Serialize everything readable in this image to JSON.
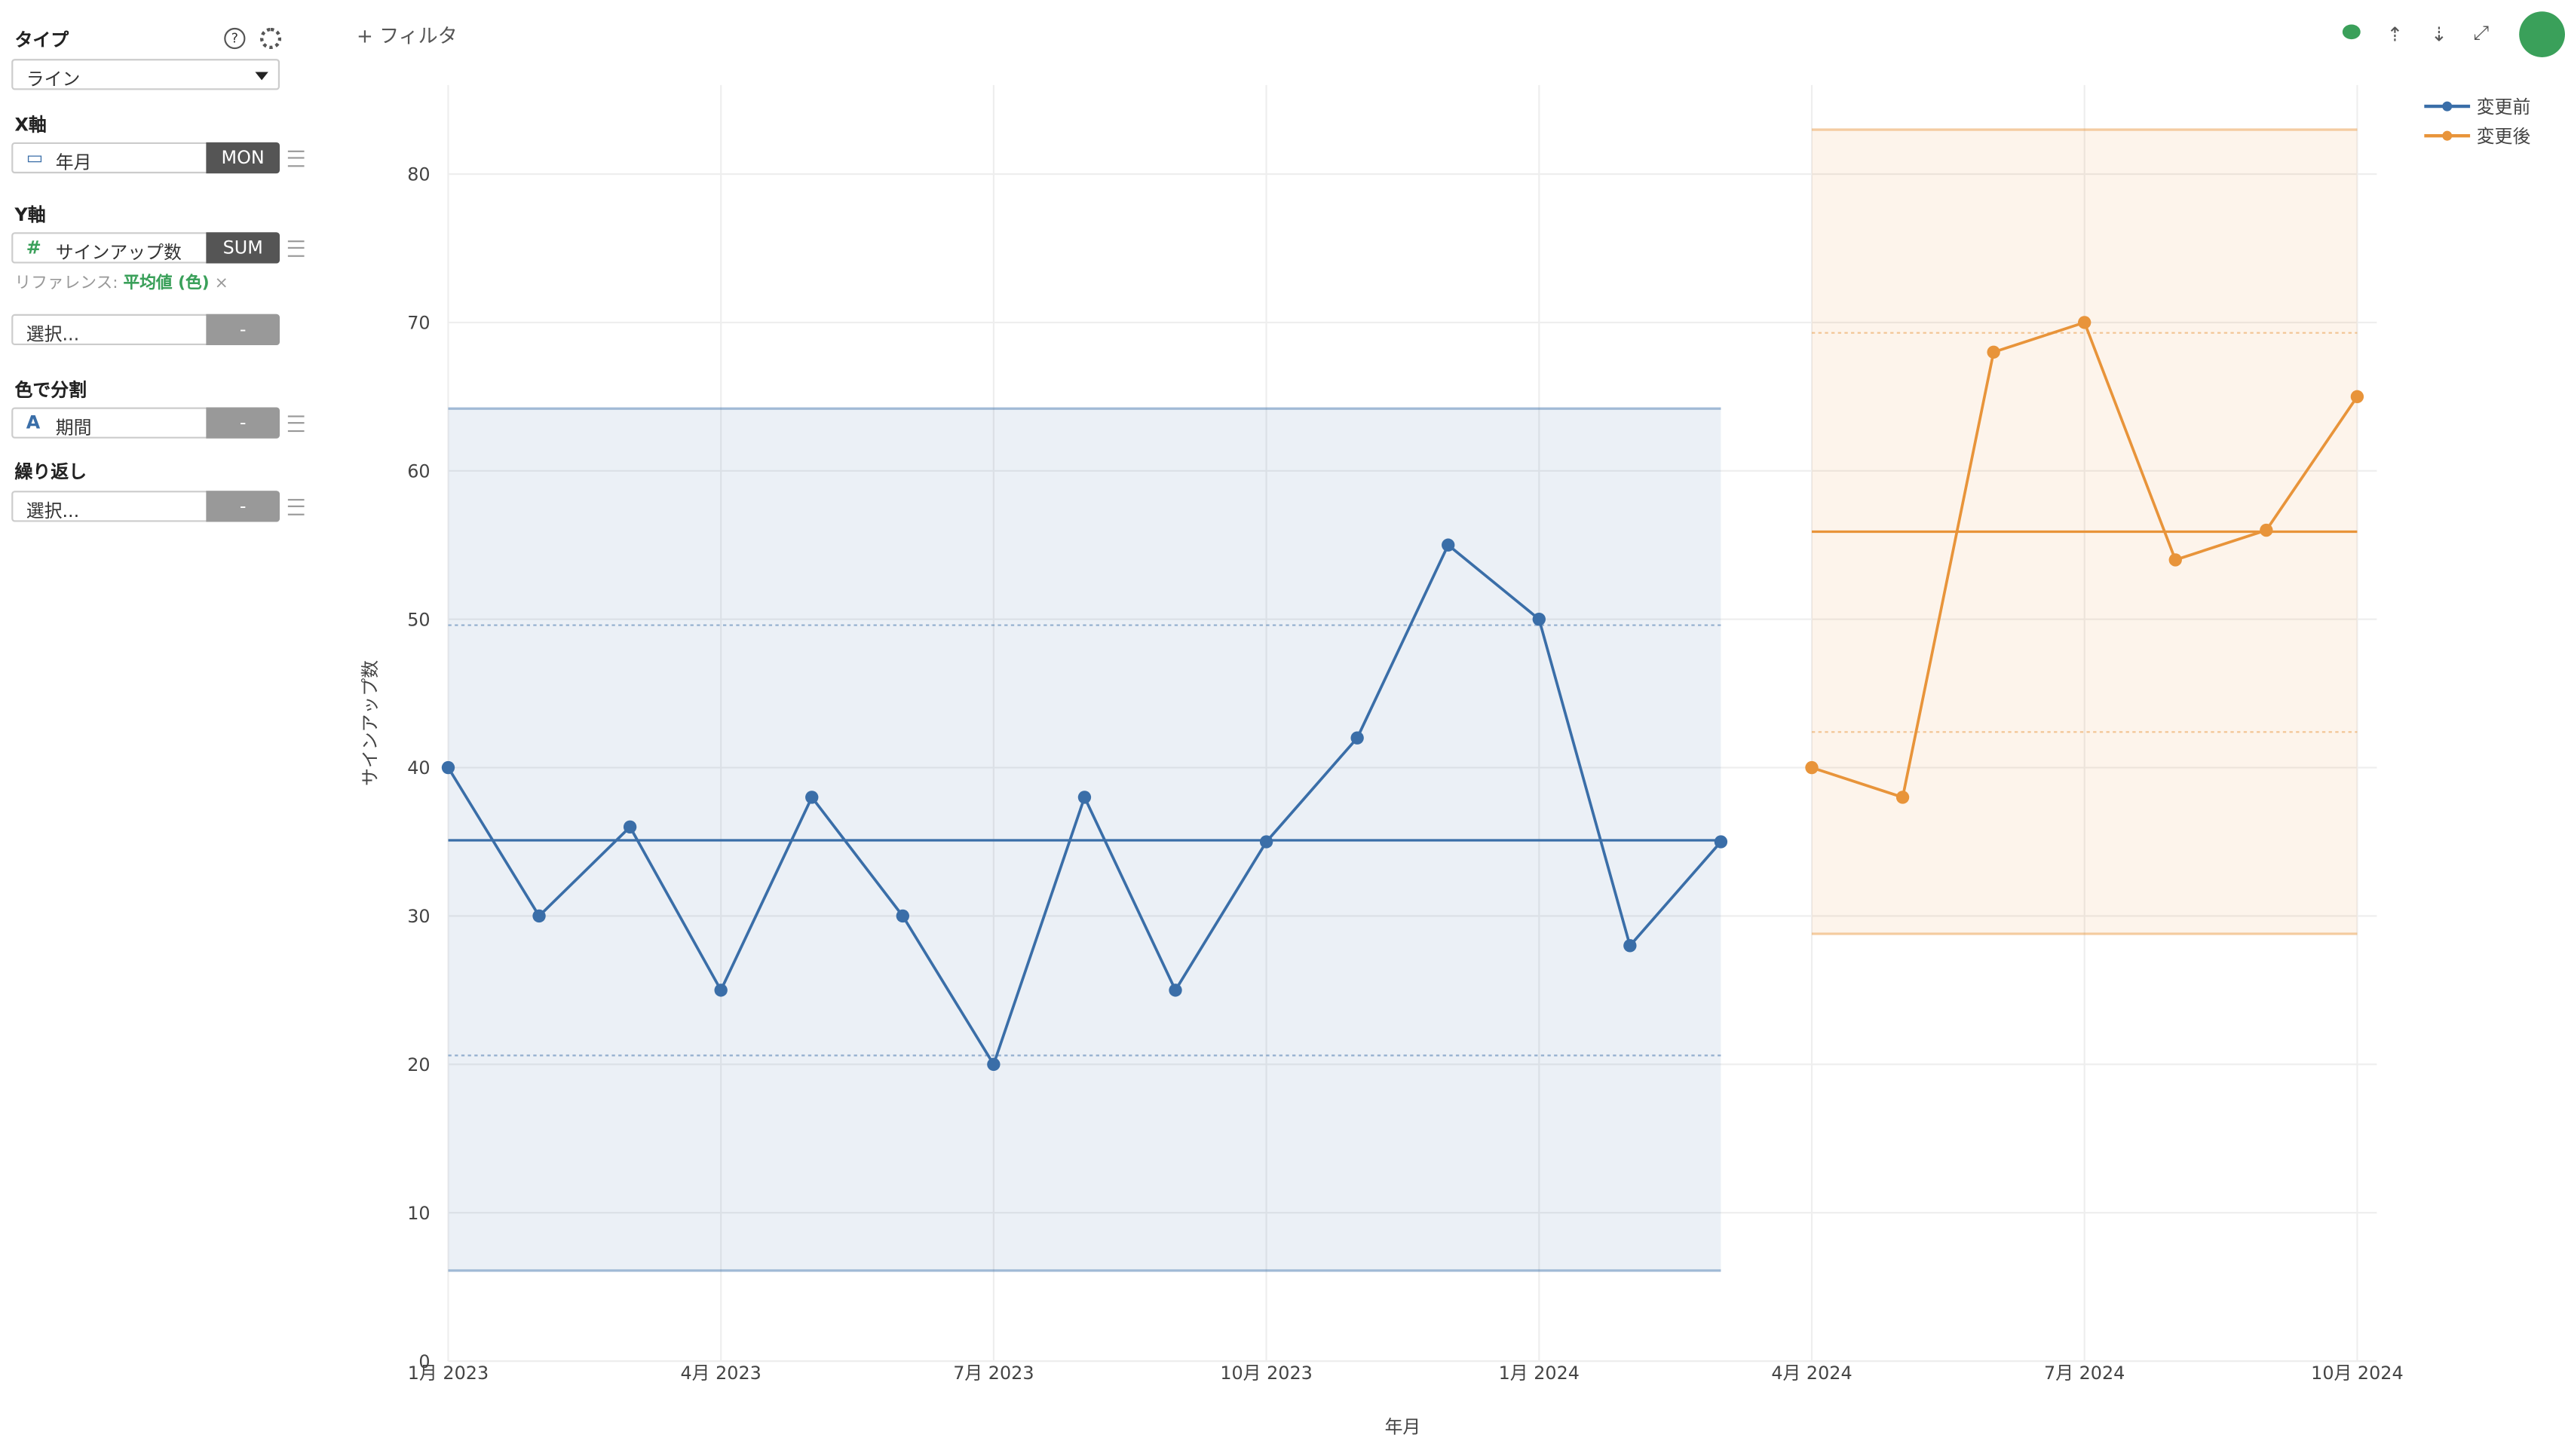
{
  "sidebar": {
    "type_label": "タイプ",
    "type_value": "ライン",
    "x_label": "X軸",
    "x_field": "年月",
    "x_agg": "MON",
    "y_label": "Y軸",
    "y_icon": "#",
    "y_field": "サインアップ数",
    "y_agg": "SUM",
    "ref_label": "リファレンス:",
    "ref_value": "平均値 (色)",
    "extra_select": "選択...",
    "extra_agg": "-",
    "color_label": "色で分割",
    "color_icon": "A",
    "color_field": "期間",
    "color_agg": "-",
    "repeat_label": "繰り返し",
    "repeat_select": "選択...",
    "repeat_agg": "-"
  },
  "toolbar": {
    "filter": "フィルタ"
  },
  "chart_data": {
    "type": "line",
    "x_label": "年月",
    "y_label": "サインアップ数",
    "x": [
      "2023-01",
      "2023-02",
      "2023-03",
      "2023-04",
      "2023-05",
      "2023-06",
      "2023-07",
      "2023-08",
      "2023-09",
      "2023-10",
      "2023-11",
      "2023-12",
      "2024-01",
      "2024-02",
      "2024-03",
      "2024-04",
      "2024-05",
      "2024-06",
      "2024-07",
      "2024-08",
      "2024-09",
      "2024-10"
    ],
    "xlim": [
      "2023-01",
      "2024-10"
    ],
    "xticks": [
      {
        "value": "2023-01",
        "label": "1月 2023"
      },
      {
        "value": "2023-04",
        "label": "4月 2023"
      },
      {
        "value": "2023-07",
        "label": "7月 2023"
      },
      {
        "value": "2023-10",
        "label": "10月 2023"
      },
      {
        "value": "2024-01",
        "label": "1月 2024"
      },
      {
        "value": "2024-04",
        "label": "4月 2024"
      },
      {
        "value": "2024-07",
        "label": "7月 2024"
      },
      {
        "value": "2024-10",
        "label": "10月 2024"
      }
    ],
    "ylim": [
      0,
      86
    ],
    "yticks": [
      0,
      10,
      20,
      30,
      40,
      50,
      60,
      70,
      80
    ],
    "grid": true,
    "legend": "top-right",
    "series": [
      {
        "name": "変更前",
        "color": "#3a6ea8",
        "values": [
          40,
          30,
          36,
          25,
          38,
          30,
          20,
          38,
          25,
          35,
          42,
          55,
          50,
          28,
          35,
          null,
          null,
          null,
          null,
          null,
          null,
          null
        ],
        "reference": {
          "mean": 35.1,
          "inner": [
            20.6,
            49.6
          ],
          "outer": [
            6.1,
            64.2
          ]
        }
      },
      {
        "name": "変更後",
        "color": "#e8943a",
        "values": [
          null,
          null,
          null,
          null,
          null,
          null,
          null,
          null,
          null,
          null,
          null,
          null,
          null,
          null,
          null,
          40,
          38,
          68,
          70,
          54,
          56,
          65
        ],
        "reference": {
          "mean": 55.9,
          "inner": [
            42.4,
            69.3
          ],
          "outer": [
            28.8,
            83.0
          ]
        }
      }
    ]
  }
}
